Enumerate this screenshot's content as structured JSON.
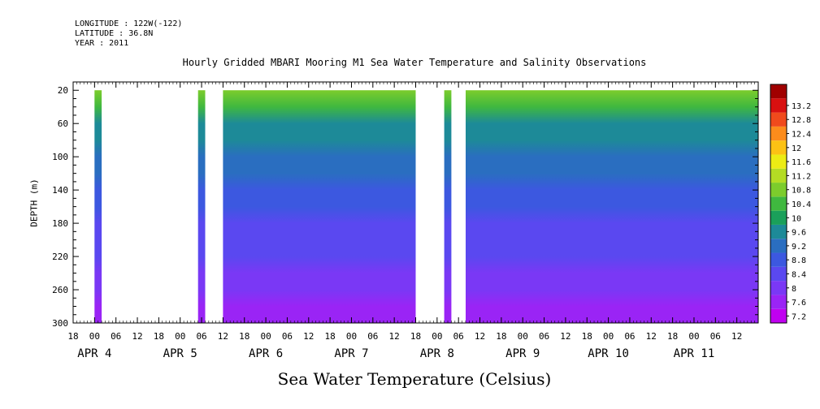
{
  "header": {
    "longitude": "LONGITUDE : 122W(-122)",
    "latitude": "LATITUDE : 36.8N",
    "year": "YEAR : 2011"
  },
  "chart_data": {
    "type": "heatmap",
    "title": "Hourly Gridded MBARI Mooring M1 Sea Water Temperature and Salinity Observations",
    "xlabel": "Sea Water Temperature (Celsius)",
    "ylabel": "DEPTH (m)",
    "x_start": "2011-04-03 18:00",
    "x_end": "2011-04-11 18:00",
    "ylim": [
      300,
      10
    ],
    "y_ticks": [
      20,
      60,
      100,
      140,
      180,
      220,
      260,
      300
    ],
    "x_hour_ticks": [
      {
        "t": "2011-04-03 18:00",
        "label": "18"
      },
      {
        "t": "2011-04-04 00:00",
        "label": "00"
      },
      {
        "t": "2011-04-04 06:00",
        "label": "06"
      },
      {
        "t": "2011-04-04 12:00",
        "label": "12"
      },
      {
        "t": "2011-04-04 18:00",
        "label": "18"
      },
      {
        "t": "2011-04-05 00:00",
        "label": "00"
      },
      {
        "t": "2011-04-05 06:00",
        "label": "06"
      },
      {
        "t": "2011-04-05 12:00",
        "label": "12"
      },
      {
        "t": "2011-04-05 18:00",
        "label": "18"
      },
      {
        "t": "2011-04-06 00:00",
        "label": "00"
      },
      {
        "t": "2011-04-06 06:00",
        "label": "06"
      },
      {
        "t": "2011-04-06 12:00",
        "label": "12"
      },
      {
        "t": "2011-04-06 18:00",
        "label": "18"
      },
      {
        "t": "2011-04-07 00:00",
        "label": "00"
      },
      {
        "t": "2011-04-07 06:00",
        "label": "06"
      },
      {
        "t": "2011-04-07 12:00",
        "label": "12"
      },
      {
        "t": "2011-04-07 18:00",
        "label": "18"
      },
      {
        "t": "2011-04-08 00:00",
        "label": "00"
      },
      {
        "t": "2011-04-08 06:00",
        "label": "06"
      },
      {
        "t": "2011-04-08 12:00",
        "label": "12"
      },
      {
        "t": "2011-04-08 18:00",
        "label": "18"
      },
      {
        "t": "2011-04-09 00:00",
        "label": "00"
      },
      {
        "t": "2011-04-09 06:00",
        "label": "06"
      },
      {
        "t": "2011-04-09 12:00",
        "label": "12"
      },
      {
        "t": "2011-04-09 18:00",
        "label": "18"
      },
      {
        "t": "2011-04-10 00:00",
        "label": "00"
      },
      {
        "t": "2011-04-10 06:00",
        "label": "06"
      },
      {
        "t": "2011-04-10 12:00",
        "label": "12"
      },
      {
        "t": "2011-04-10 18:00",
        "label": "18"
      },
      {
        "t": "2011-04-11 00:00",
        "label": "00"
      },
      {
        "t": "2011-04-11 06:00",
        "label": "06"
      },
      {
        "t": "2011-04-11 12:00",
        "label": "12"
      }
    ],
    "x_day_labels": [
      {
        "t": "2011-04-04 00:00",
        "label": "APR  4"
      },
      {
        "t": "2011-04-05 00:00",
        "label": "APR  5"
      },
      {
        "t": "2011-04-06 00:00",
        "label": "APR  6"
      },
      {
        "t": "2011-04-07 00:00",
        "label": "APR  7"
      },
      {
        "t": "2011-04-08 00:00",
        "label": "APR  8"
      },
      {
        "t": "2011-04-09 00:00",
        "label": "APR  9"
      },
      {
        "t": "2011-04-10 00:00",
        "label": "APR 10"
      },
      {
        "t": "2011-04-11 00:00",
        "label": "APR 11"
      }
    ],
    "data_segments": [
      {
        "start": "2011-04-04 00:00",
        "end": "2011-04-04 02:00"
      },
      {
        "start": "2011-04-05 05:00",
        "end": "2011-04-05 07:00"
      },
      {
        "start": "2011-04-05 12:00",
        "end": "2011-04-07 18:00"
      },
      {
        "start": "2011-04-08 02:00",
        "end": "2011-04-08 04:00"
      },
      {
        "start": "2011-04-08 08:00",
        "end": "2011-04-11 18:00"
      }
    ],
    "depth_profile": [
      {
        "depth": 20,
        "temp": 10.6
      },
      {
        "depth": 40,
        "temp": 10.0
      },
      {
        "depth": 60,
        "temp": 9.5
      },
      {
        "depth": 80,
        "temp": 9.2
      },
      {
        "depth": 100,
        "temp": 9.0
      },
      {
        "depth": 120,
        "temp": 8.8
      },
      {
        "depth": 140,
        "temp": 8.6
      },
      {
        "depth": 160,
        "temp": 8.4
      },
      {
        "depth": 180,
        "temp": 8.3
      },
      {
        "depth": 200,
        "temp": 8.1
      },
      {
        "depth": 220,
        "temp": 8.0
      },
      {
        "depth": 240,
        "temp": 7.9
      },
      {
        "depth": 260,
        "temp": 7.7
      },
      {
        "depth": 280,
        "temp": 7.5
      },
      {
        "depth": 300,
        "temp": 7.4
      }
    ],
    "colorbar": {
      "levels": [
        7.2,
        7.6,
        8,
        8.4,
        8.8,
        9.2,
        9.6,
        10,
        10.4,
        10.8,
        11.2,
        11.6,
        12,
        12.4,
        12.8,
        13.2
      ],
      "labels": [
        "7.2",
        "7.6",
        "8",
        "8.4",
        "8.8",
        "9.2",
        "9.6",
        "10",
        "10.4",
        "10.8",
        "11.2",
        "11.6",
        "12",
        "12.4",
        "12.8",
        "13.2"
      ],
      "colors": [
        "#c000f0",
        "#9a24f5",
        "#7a38f5",
        "#5a48f0",
        "#3c58e0",
        "#2a6ec0",
        "#1d8a98",
        "#1aa05a",
        "#3fb83f",
        "#7ccc2c",
        "#b4dc24",
        "#ecec14",
        "#fcc214",
        "#fc8c1c",
        "#f04a1c",
        "#d81010",
        "#a00000"
      ]
    }
  }
}
